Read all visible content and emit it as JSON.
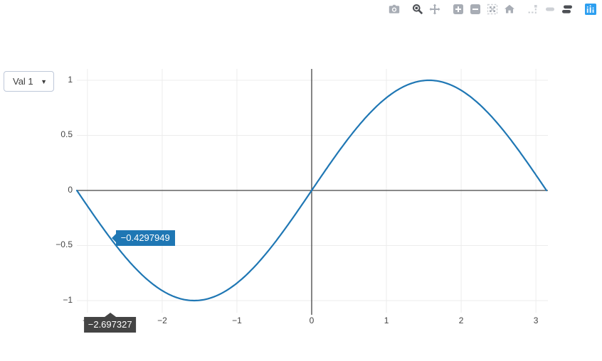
{
  "modebar": {
    "buttons": [
      {
        "name": "camera",
        "active": false
      },
      {
        "name": "zoom",
        "active": true
      },
      {
        "name": "pan",
        "active": false
      },
      {
        "name": "zoom-in",
        "active": false
      },
      {
        "name": "zoom-out",
        "active": false
      },
      {
        "name": "autoscale",
        "active": false
      },
      {
        "name": "reset-axes",
        "active": false
      },
      {
        "name": "toggle-spikelines",
        "active": false
      },
      {
        "name": "hover-closest",
        "active": false
      },
      {
        "name": "hover-compare",
        "active": true
      },
      {
        "name": "plotly-logo",
        "active": false
      }
    ],
    "colors": {
      "inactive": "#a8adb5",
      "faint": "#cdd0d5",
      "active": "#4c4f54",
      "logo_bg": "#2d9ff0"
    }
  },
  "dropdown": {
    "label": "Val 1",
    "arrow": "▼"
  },
  "chart_data": {
    "type": "line",
    "title": "",
    "xlabel": "",
    "ylabel": "",
    "grid": true,
    "zeroline": true,
    "legend": "none",
    "series": [
      {
        "name": "Val 1",
        "expression": "sin(x)",
        "x_min": -3.141593,
        "x_max": 3.141593,
        "color": "#1f77b4"
      }
    ],
    "x_range": [
      -3.1416,
      3.1607
    ],
    "y_range": [
      -1.1097,
      1.1032
    ],
    "xticks": {
      "values": [
        -3,
        -2,
        -1,
        0,
        1,
        2,
        3
      ],
      "labels": [
        "−3",
        "−2",
        "−1",
        "0",
        "1",
        "2",
        "3"
      ]
    },
    "yticks": {
      "values": [
        -1,
        -0.5,
        0,
        0.5,
        1
      ],
      "labels": [
        "−1",
        "−0.5",
        "0",
        "0.5",
        "1"
      ]
    },
    "hover": {
      "x": -2.697327,
      "y": -0.4297949,
      "point_label": "−0.4297949",
      "axis_label": "−2.697327"
    },
    "colors": {
      "line": "#1f77b4",
      "grid": "#ececec",
      "zeroline": "#444444",
      "tick": "#444444",
      "hover_bg": "#1f77b4",
      "axis_hover_bg": "#444444"
    }
  }
}
